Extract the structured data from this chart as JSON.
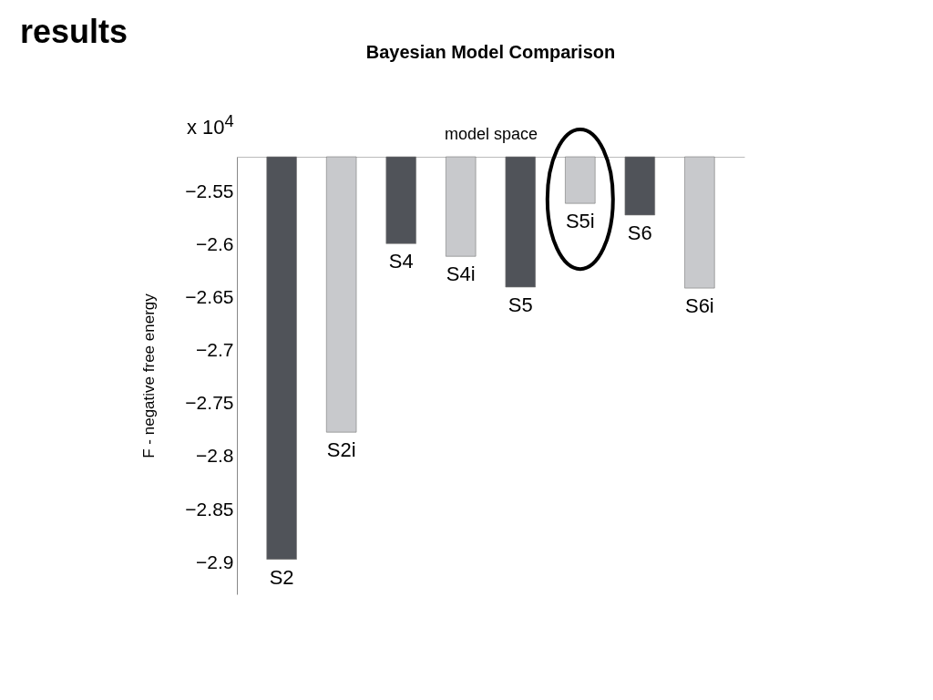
{
  "chart_data": {
    "type": "bar",
    "title": "Bayesian Model Comparison",
    "xlabel": "model space",
    "ylabel": "F - negative free energy",
    "categories": [
      "S2",
      "S2i",
      "S4",
      "S4i",
      "S5",
      "S5i",
      "S6",
      "S6i"
    ],
    "values": [
      -2.897,
      -2.777,
      -2.599,
      -2.611,
      -2.64,
      -2.561,
      -2.572,
      -2.641
    ],
    "colors": [
      "#505359",
      "#c8c9cc",
      "#505359",
      "#c8c9cc",
      "#505359",
      "#c8c9cc",
      "#505359",
      "#c8c9cc"
    ],
    "ylim": [
      -2.93,
      -2.517
    ],
    "yticks": [
      -2.9,
      -2.85,
      -2.8,
      -2.75,
      -2.7,
      -2.65,
      -2.6,
      -2.55
    ],
    "grid": false,
    "tick_labels": "y",
    "annotations": [
      "results",
      "x 10$^{4}$"
    ]
  }
}
